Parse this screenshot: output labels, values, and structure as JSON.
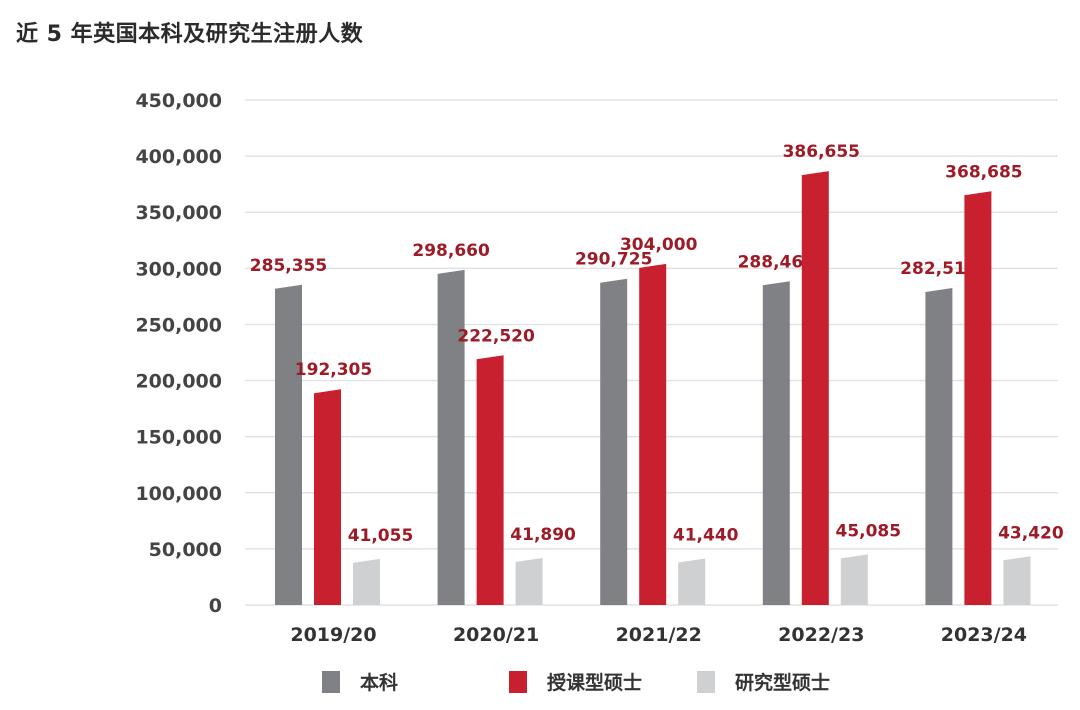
{
  "title": "近 5 年英国本科及研究生注册人数",
  "chart_data": {
    "type": "bar",
    "title": "近 5 年英国本科及研究生注册人数",
    "categories": [
      "2019/20",
      "2020/21",
      "2021/22",
      "2022/23",
      "2023/24"
    ],
    "series": [
      {
        "name": "本科",
        "color": "#808184",
        "label_color": "#9d1b27",
        "values": [
          285355,
          298660,
          290725,
          288465,
          282515
        ]
      },
      {
        "name": "授课型硕士",
        "color": "#c8202e",
        "label_color": "#9d1b27",
        "values": [
          192305,
          222520,
          304000,
          386655,
          368685
        ]
      },
      {
        "name": "研究型硕士",
        "color": "#cfd0d1",
        "label_color": "#9d1b27",
        "values": [
          41055,
          41890,
          41440,
          45085,
          43420
        ]
      }
    ],
    "value_labels": [
      [
        "285,355",
        "298,660",
        "290,725",
        "288,465",
        "282,515"
      ],
      [
        "192,305",
        "222,520",
        "304,000",
        "386,655",
        "368,685"
      ],
      [
        "41,055",
        "41,890",
        "41,440",
        "45,085",
        "43,420"
      ]
    ],
    "y_ticks": [
      "0",
      "50,000",
      "100,000",
      "150,000",
      "200,000",
      "250,000",
      "300,000",
      "350,000",
      "400,000",
      "450,000"
    ],
    "ylim": [
      0,
      450000
    ],
    "grid": true,
    "legend_position": "bottom"
  }
}
